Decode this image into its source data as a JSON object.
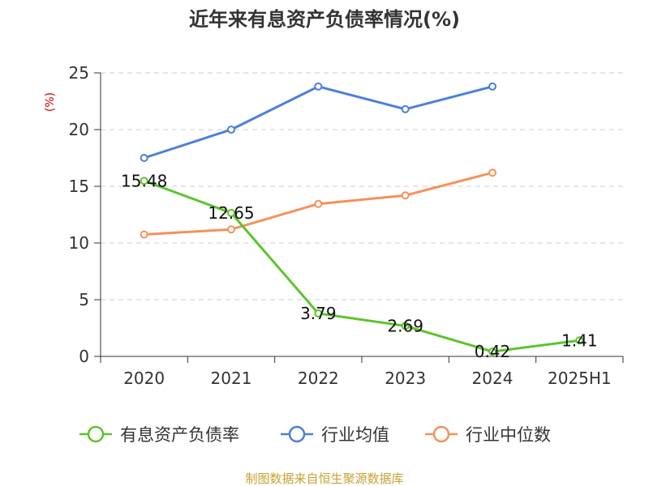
{
  "chart_data": {
    "type": "line",
    "title": "近年来有息资产负债率情况(%)",
    "ylabel": "(%)",
    "xlabel": "",
    "categories": [
      "2020",
      "2021",
      "2022",
      "2023",
      "2024",
      "2025H1"
    ],
    "ylim": [
      0,
      25
    ],
    "yticks": [
      0,
      5,
      10,
      15,
      20,
      25
    ],
    "grid": true,
    "legend_position": "bottom",
    "series": [
      {
        "name": "有息资产负债率",
        "color": "#5cc42b",
        "values": [
          15.48,
          12.65,
          3.79,
          2.69,
          0.42,
          1.41
        ],
        "labels": [
          "15.48",
          "12.65",
          "3.79",
          "2.69",
          "0.42",
          "1.41"
        ]
      },
      {
        "name": "行业均值",
        "color": "#4c7fdb",
        "values": [
          17.5,
          20.0,
          23.8,
          21.8,
          23.8,
          null
        ]
      },
      {
        "name": "行业中位数",
        "color": "#f5915a",
        "values": [
          10.75,
          11.2,
          13.45,
          14.2,
          16.2,
          null
        ]
      }
    ]
  },
  "source": "制图数据来自恒生聚源数据库"
}
